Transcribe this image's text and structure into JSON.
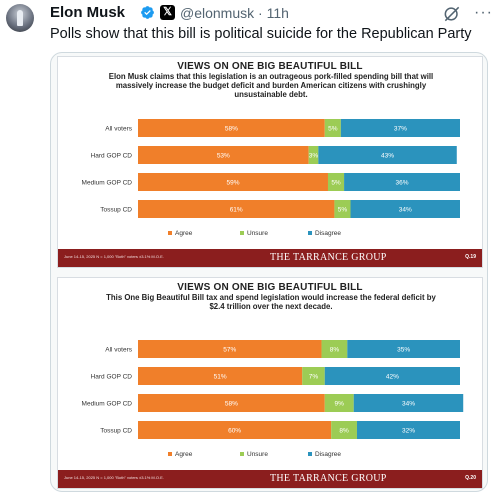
{
  "tweet": {
    "author_name": "Elon Musk",
    "handle_time": "@elonmusk · 11h",
    "x_badge": "𝕏",
    "text": "Polls show that this bill is political suicide for the Republican Party"
  },
  "icons": {
    "verified": "verified-icon",
    "grok": "grok-icon",
    "more": "more-icon"
  },
  "colors": {
    "agree": "#f07f2a",
    "unsure": "#9ccc55",
    "disagree": "#2b93bd",
    "footer": "#8b1e1e"
  },
  "chart_data": [
    {
      "type": "bar",
      "orientation": "horizontal-stacked",
      "title": "VIEWS ON ONE BIG BEAUTIFUL BILL",
      "subtitle": "Elon Musk claims that this legislation is an outrageous pork-filled spending bill that will massively increase the budget deficit and burden American citizens with crushingly unsustainable debt.",
      "categories": [
        "All voters",
        "Hard GOP CD",
        "Medium GOP CD",
        "Tossup CD"
      ],
      "series": [
        {
          "name": "Agree",
          "values": [
            58,
            53,
            59,
            61
          ]
        },
        {
          "name": "Unsure",
          "values": [
            5,
            3,
            5,
            5
          ]
        },
        {
          "name": "Disagree",
          "values": [
            37,
            43,
            36,
            34
          ]
        }
      ],
      "labels": [
        [
          "58%",
          "5%",
          "37%"
        ],
        [
          "53%",
          "3%",
          "43%"
        ],
        [
          "59%",
          "5%",
          "36%"
        ],
        [
          "61%",
          "5%",
          "34%"
        ]
      ],
      "legend": "bottom",
      "footnote": "June 14-15, 2025 N = 1,000 \"Both\" voters ±3.1% M.O.E.",
      "brand": "THE TARRANCE GROUP",
      "question": "Q.19"
    },
    {
      "type": "bar",
      "orientation": "horizontal-stacked",
      "title": "VIEWS ON ONE BIG BEAUTIFUL BILL",
      "subtitle": "This One Big Beautiful Bill tax and spend legislation would increase the federal deficit by $2.4 trillion over the next decade.",
      "categories": [
        "All voters",
        "Hard GOP CD",
        "Medium GOP CD",
        "Tossup CD"
      ],
      "series": [
        {
          "name": "Agree",
          "values": [
            57,
            51,
            58,
            60
          ]
        },
        {
          "name": "Unsure",
          "values": [
            8,
            7,
            9,
            8
          ]
        },
        {
          "name": "Disagree",
          "values": [
            35,
            42,
            34,
            32
          ]
        }
      ],
      "labels": [
        [
          "57%",
          "8%",
          "35%"
        ],
        [
          "51%",
          "7%",
          "42%"
        ],
        [
          "58%",
          "9%",
          "34%"
        ],
        [
          "60%",
          "8%",
          "32%"
        ]
      ],
      "legend": "bottom",
      "footnote": "June 14-15, 2025 N = 1,000 \"Both\" voters ±3.1% M.O.E.",
      "brand": "THE TARRANCE GROUP",
      "question": "Q.20"
    }
  ]
}
